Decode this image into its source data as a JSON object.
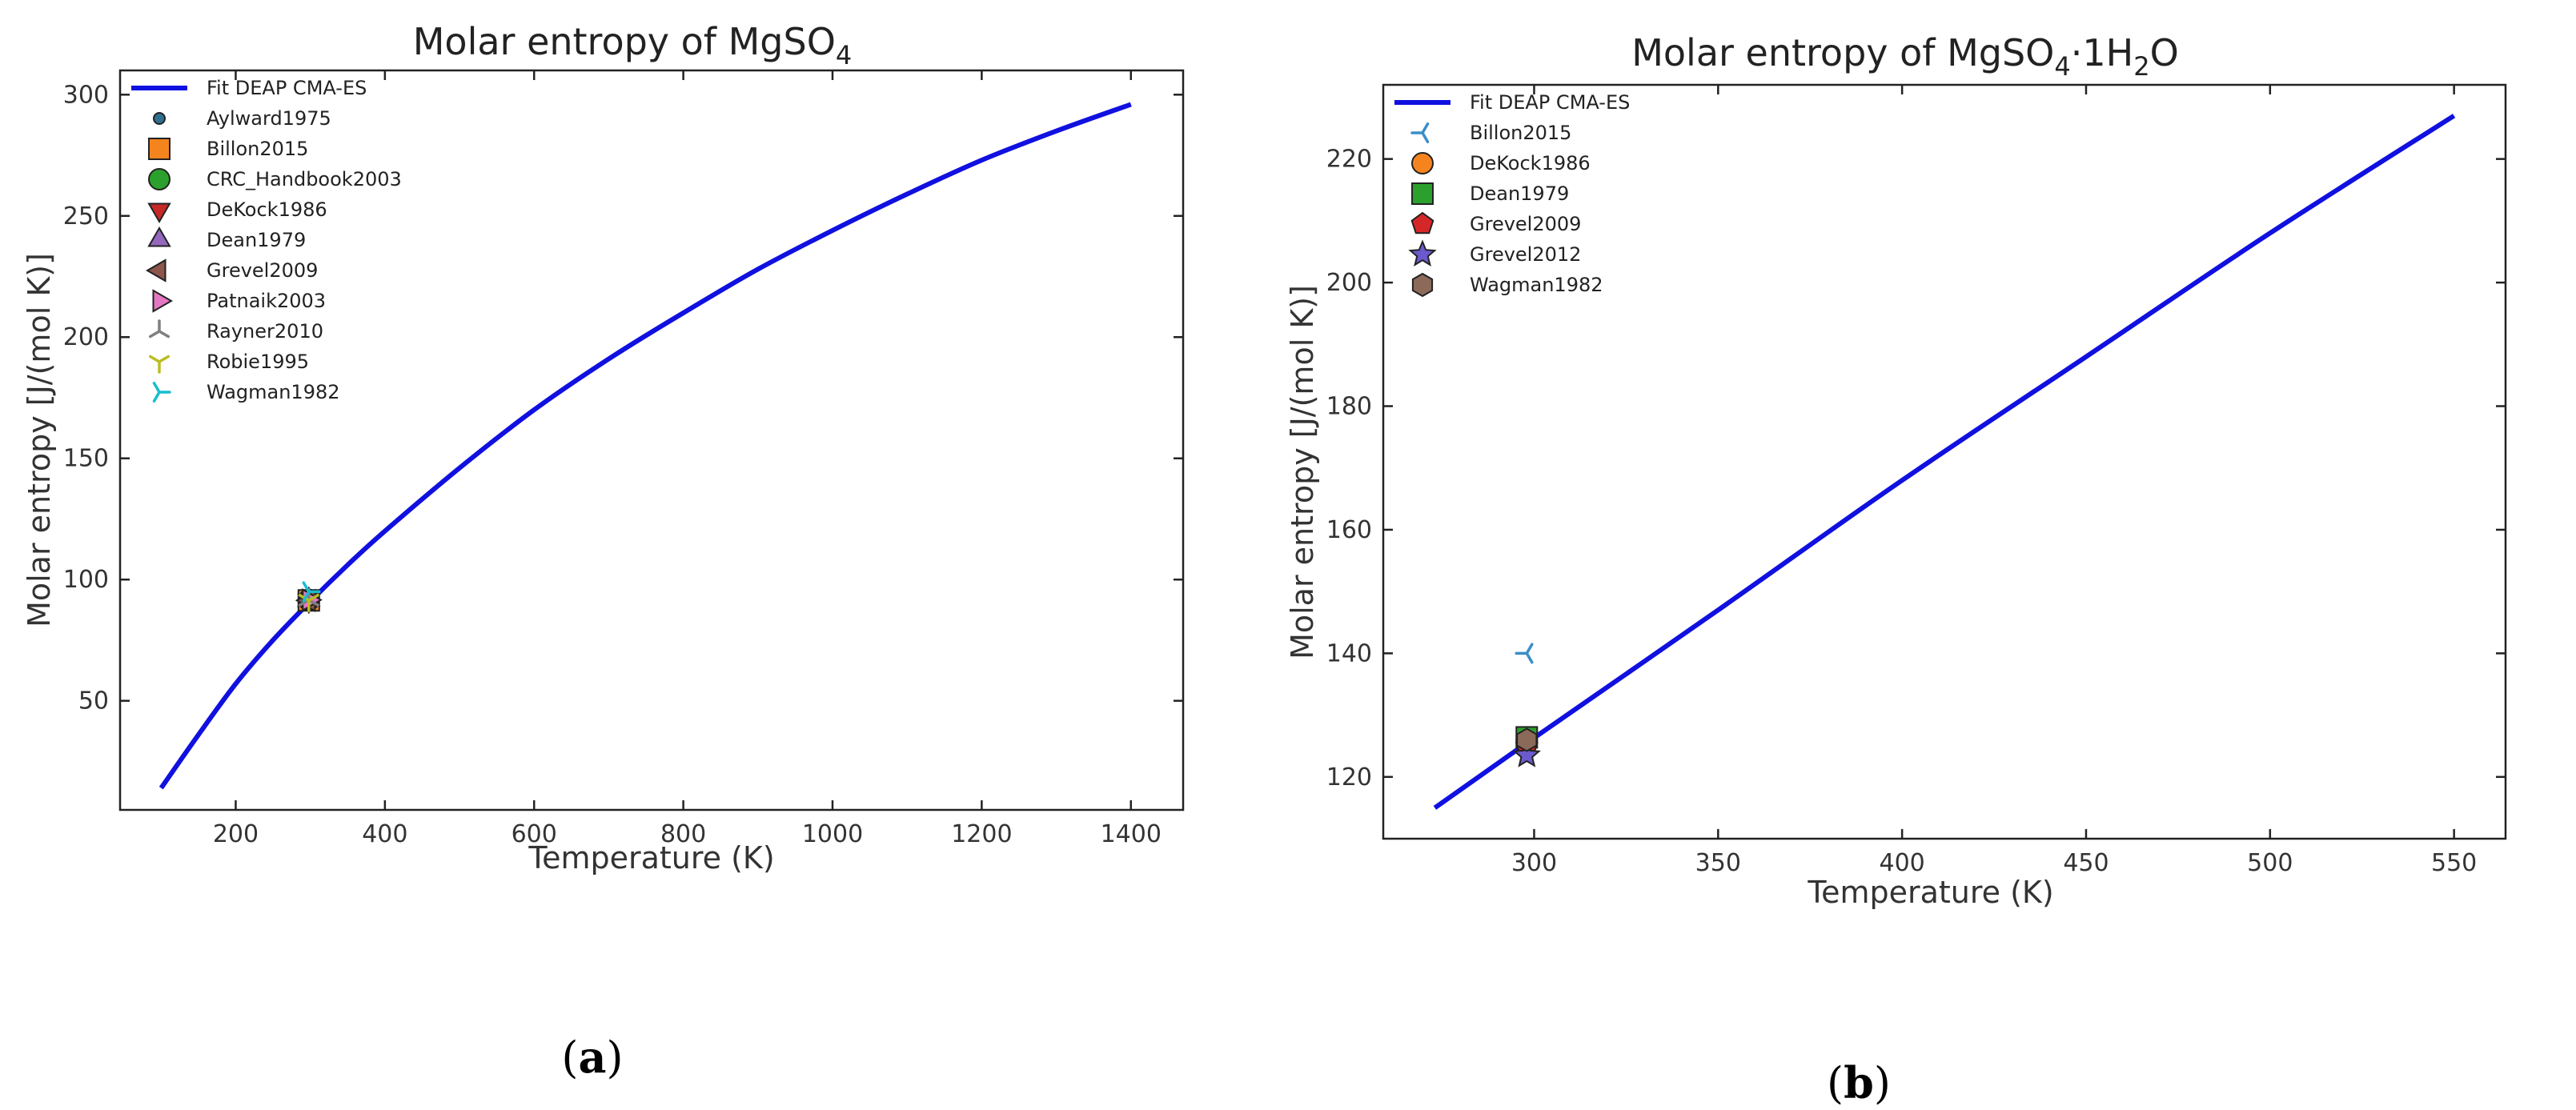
{
  "chart_data": [
    {
      "type": "line",
      "title": "Molar entropy of MgSO",
      "title_sub": "4",
      "xlabel": "Temperature (K)",
      "ylabel": "Molar entropy [J/(mol K)]",
      "xlim": [
        45,
        1470
      ],
      "ylim": [
        5,
        310
      ],
      "xticks": [
        200,
        400,
        600,
        800,
        1000,
        1200,
        1400
      ],
      "yticks": [
        50,
        100,
        150,
        200,
        250,
        300
      ],
      "grid": false,
      "legend_position": "top-left",
      "caption": "(a)",
      "fit": {
        "name": "Fit DEAP CMA-ES",
        "color": "#1010e0",
        "x": [
          100,
          150,
          200,
          250,
          300,
          350,
          400,
          500,
          600,
          700,
          800,
          900,
          1000,
          1100,
          1200,
          1300,
          1400
        ],
        "y": [
          14,
          36,
          57,
          75,
          91,
          106,
          120,
          146,
          170,
          191,
          210,
          228,
          244,
          259,
          273,
          285,
          296
        ]
      },
      "series": [
        {
          "name": "Aylward1975",
          "marker": "circle-small",
          "color": "#2f6f90",
          "x": [
            298
          ],
          "y": [
            91.6
          ]
        },
        {
          "name": "Billon2015",
          "marker": "square",
          "color": "#f5841f",
          "x": [
            298
          ],
          "y": [
            91.4
          ]
        },
        {
          "name": "CRC_Handbook2003",
          "marker": "circle",
          "color": "#2ca02c",
          "x": [
            298
          ],
          "y": [
            91.6
          ]
        },
        {
          "name": "DeKock1986",
          "marker": "triangle-down",
          "color": "#c62828",
          "x": [
            298
          ],
          "y": [
            91.4
          ]
        },
        {
          "name": "Dean1979",
          "marker": "triangle-up",
          "color": "#9467bd",
          "x": [
            298
          ],
          "y": [
            91.6
          ]
        },
        {
          "name": "Grevel2009",
          "marker": "triangle-left",
          "color": "#8c564b",
          "x": [
            298
          ],
          "y": [
            91.4
          ]
        },
        {
          "name": "Patnaik2003",
          "marker": "triangle-right",
          "color": "#e377c2",
          "x": [
            298
          ],
          "y": [
            91.6
          ]
        },
        {
          "name": "Rayner2010",
          "marker": "tri-down",
          "color": "#7f7f7f",
          "x": [
            298
          ],
          "y": [
            91.6
          ]
        },
        {
          "name": "Robie1995",
          "marker": "tri-up",
          "color": "#bcbd22",
          "x": [
            298
          ],
          "y": [
            91.4
          ]
        },
        {
          "name": "Wagman1982",
          "marker": "tri-left",
          "color": "#17becf",
          "x": [
            298
          ],
          "y": [
            95
          ]
        }
      ]
    },
    {
      "type": "line",
      "title": "Molar entropy of MgSO",
      "title_sub": "4",
      "title_mid": "·1H",
      "title_sub2": "2",
      "title_end": "O",
      "xlabel": "Temperature (K)",
      "ylabel": "Molar entropy [J/(mol K)]",
      "xlim": [
        259,
        564
      ],
      "ylim": [
        110,
        232
      ],
      "xticks": [
        300,
        350,
        400,
        450,
        500,
        550
      ],
      "yticks": [
        120,
        140,
        160,
        180,
        200,
        220
      ],
      "grid": false,
      "legend_position": "top-left",
      "caption": "(b)",
      "fit": {
        "name": "Fit DEAP CMA-ES",
        "color": "#1010e0",
        "x": [
          273,
          298,
          350,
          400,
          450,
          500,
          550
        ],
        "y": [
          115,
          125.5,
          147,
          168,
          188,
          208,
          227
        ]
      },
      "series": [
        {
          "name": "Billon2015",
          "marker": "tri-right",
          "color": "#3a8ec8",
          "x": [
            298
          ],
          "y": [
            140
          ]
        },
        {
          "name": "DeKock1986",
          "marker": "circle",
          "color": "#f5841f",
          "x": [
            298
          ],
          "y": [
            126
          ]
        },
        {
          "name": "Dean1979",
          "marker": "square",
          "color": "#2ca02c",
          "x": [
            298
          ],
          "y": [
            126.4
          ]
        },
        {
          "name": "Grevel2009",
          "marker": "pentagon",
          "color": "#d62728",
          "x": [
            298
          ],
          "y": [
            125
          ]
        },
        {
          "name": "Grevel2012",
          "marker": "star",
          "color": "#6a5acd",
          "x": [
            298
          ],
          "y": [
            123.5
          ]
        },
        {
          "name": "Wagman1982",
          "marker": "hexagon",
          "color": "#8c6a5a",
          "x": [
            298
          ],
          "y": [
            126
          ]
        }
      ]
    }
  ]
}
